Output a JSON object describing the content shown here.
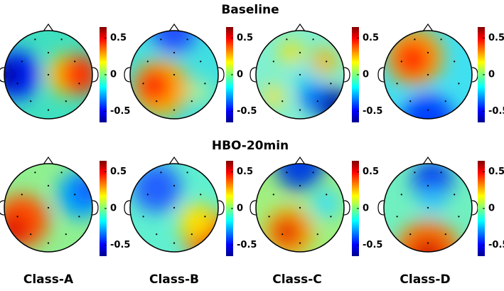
{
  "rows": [
    {
      "title": "Baseline"
    },
    {
      "title": "HBO-20min"
    }
  ],
  "classes": [
    "Class-A",
    "Class-B",
    "Class-C",
    "Class-D"
  ],
  "colorbar": {
    "lim": [
      -0.65,
      0.65
    ],
    "ticks": [
      0.5,
      0,
      -0.5
    ]
  }
}
